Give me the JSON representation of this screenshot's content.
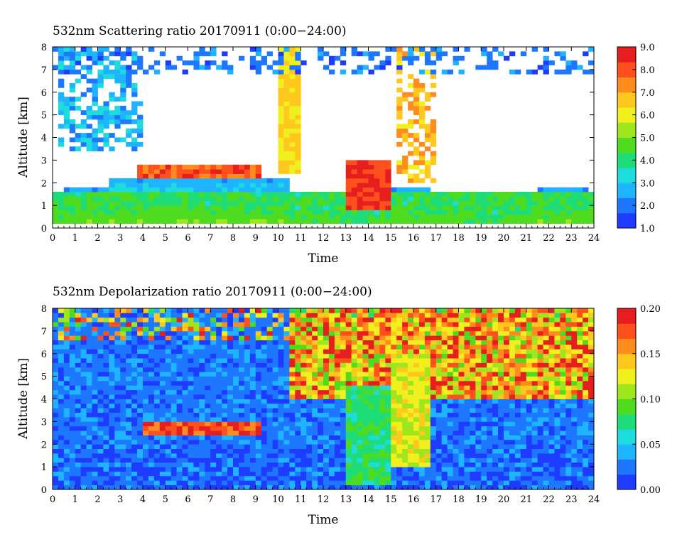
{
  "chart_data": [
    {
      "type": "heatmap",
      "title": "532nm Scattering ratio  20170911 (0:00−24:00)",
      "xlabel": "Time",
      "ylabel": "Altitude [km]",
      "xlim": [
        0,
        24
      ],
      "ylim": [
        0,
        8
      ],
      "x_ticks": [
        "0",
        "1",
        "2",
        "3",
        "4",
        "5",
        "6",
        "7",
        "8",
        "9",
        "10",
        "11",
        "12",
        "13",
        "14",
        "15",
        "16",
        "17",
        "18",
        "19",
        "20",
        "21",
        "22",
        "23",
        "24"
      ],
      "y_ticks": [
        "0",
        "1",
        "2",
        "3",
        "4",
        "5",
        "6",
        "7",
        "8"
      ],
      "colorbar": {
        "range": [
          1.0,
          9.0
        ],
        "ticks": [
          "1.0",
          "2.0",
          "3.0",
          "4.0",
          "5.0",
          "6.0",
          "7.0",
          "8.0",
          "9.0"
        ],
        "colors": [
          "#1e3cff",
          "#1e78ff",
          "#1eb4ff",
          "#1edcdc",
          "#1edc78",
          "#50dc1e",
          "#a0e61e",
          "#f0f01e",
          "#ffc81e",
          "#ff8c1e",
          "#ff501e",
          "#e61e1e"
        ]
      },
      "features": [
        {
          "kind": "aerosol_layer",
          "t_start": 0,
          "t_end": 24,
          "alt_bottom": 0.3,
          "alt_top": 1.6,
          "value": 4.5
        },
        {
          "kind": "cloud_layer",
          "t_start": 3.8,
          "t_end": 9.3,
          "alt_bottom": 2.3,
          "alt_top": 2.8,
          "value": 8.5
        },
        {
          "kind": "cloud_layer",
          "t_start": 13.0,
          "t_end": 15.0,
          "alt_bottom": 0.8,
          "alt_top": 3.0,
          "value": 9.0
        },
        {
          "kind": "cirrus",
          "t_start": 0.2,
          "t_end": 4.0,
          "alt_bottom": 3.5,
          "alt_top": 8.0,
          "value": 2.0
        },
        {
          "kind": "cirrus",
          "t_start": 15.3,
          "t_end": 17.0,
          "alt_bottom": 2.0,
          "alt_top": 8.0,
          "value": 6.0
        },
        {
          "kind": "cloud_layer",
          "t_start": 10.0,
          "t_end": 11.0,
          "alt_bottom": 2.5,
          "alt_top": 8.0,
          "value": 7.0
        }
      ]
    },
    {
      "type": "heatmap",
      "title": "532nm Depolarization ratio  20170911 (0:00−24:00)",
      "xlabel": "Time",
      "ylabel": "Altitude [km]",
      "xlim": [
        0,
        24
      ],
      "ylim": [
        0,
        8
      ],
      "x_ticks": [
        "0",
        "1",
        "2",
        "3",
        "4",
        "5",
        "6",
        "7",
        "8",
        "9",
        "10",
        "11",
        "12",
        "13",
        "14",
        "15",
        "16",
        "17",
        "18",
        "19",
        "20",
        "21",
        "22",
        "23",
        "24"
      ],
      "y_ticks": [
        "0",
        "1",
        "2",
        "3",
        "4",
        "5",
        "6",
        "7",
        "8"
      ],
      "colorbar": {
        "range": [
          0.0,
          0.2
        ],
        "ticks": [
          "0.00",
          "0.05",
          "0.10",
          "0.15",
          "0.20"
        ],
        "colors": [
          "#1e3cff",
          "#1e78ff",
          "#1eb4ff",
          "#1edcdc",
          "#1edc78",
          "#50dc1e",
          "#a0e61e",
          "#f0f01e",
          "#ffc81e",
          "#ff8c1e",
          "#ff501e",
          "#e61e1e"
        ]
      },
      "features": [
        {
          "kind": "boundary_layer",
          "t_start": 0,
          "t_end": 24,
          "alt_bottom": 0.1,
          "alt_top": 2.0,
          "value": 0.02
        },
        {
          "kind": "noisy_upper",
          "t_start": 10.5,
          "t_end": 24,
          "alt_bottom": 4.0,
          "alt_top": 8.0,
          "value": 0.17
        },
        {
          "kind": "cloud_base",
          "t_start": 4.0,
          "t_end": 9.3,
          "alt_bottom": 2.5,
          "alt_top": 3.0,
          "value": 0.18
        },
        {
          "kind": "dust_column",
          "t_start": 13.0,
          "t_end": 15.0,
          "alt_bottom": 0.2,
          "alt_top": 4.5,
          "value": 0.08
        },
        {
          "kind": "cirrus",
          "t_start": 15.0,
          "t_end": 16.8,
          "alt_bottom": 1.0,
          "alt_top": 6.0,
          "value": 0.12
        }
      ]
    }
  ]
}
